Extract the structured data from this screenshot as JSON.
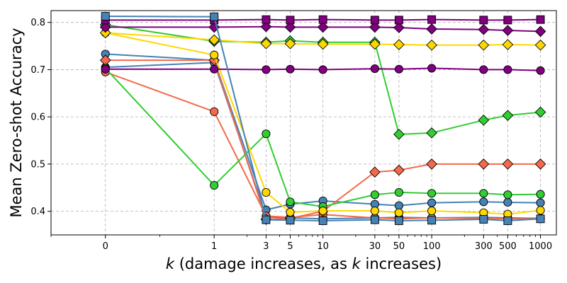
{
  "chart_data": {
    "type": "line",
    "title": "",
    "xlabel": "k (damage increases, as k increases)",
    "xlabel_parts": {
      "var": "k",
      "mid": " (damage increases, as ",
      "var2": "k",
      "end": " increases)"
    },
    "ylabel": "Mean Zero-shot Accuracy",
    "x_scale": "symlog",
    "xlim": [
      -0.5,
      1400
    ],
    "ylim": [
      0.35,
      0.825
    ],
    "grid": true,
    "x_ticks": [
      0,
      1,
      3,
      5,
      10,
      30,
      50,
      100,
      300,
      500,
      1000
    ],
    "x_tick_labels": [
      "0",
      "1",
      "3",
      "5",
      "10",
      "30",
      "50",
      "100",
      "300",
      "500",
      "1000"
    ],
    "y_ticks": [
      0.4,
      0.5,
      0.6,
      0.7,
      0.8
    ],
    "y_tick_labels": [
      "0.4",
      "0.5",
      "0.6",
      "0.7",
      "0.8"
    ],
    "series": [
      {
        "name": "steelblue-circle-1",
        "color": "#4682b4",
        "marker": "circle",
        "x": [
          0,
          1,
          3,
          5,
          10,
          30,
          50,
          100,
          300,
          500,
          1000
        ],
        "y": [
          0.733,
          0.72,
          0.403,
          0.415,
          0.422,
          0.415,
          0.412,
          0.418,
          0.42,
          0.419,
          0.418
        ]
      },
      {
        "name": "steelblue-circle-2",
        "color": "#4682b4",
        "marker": "circle",
        "x": [
          0,
          1,
          3,
          5,
          10,
          30,
          50,
          100,
          300,
          500,
          1000
        ],
        "y": [
          0.705,
          0.715,
          0.388,
          0.386,
          0.384,
          0.386,
          0.387,
          0.386,
          0.387,
          0.386,
          0.385
        ]
      },
      {
        "name": "tomato-circle",
        "color": "#f4694b",
        "marker": "circle",
        "x": [
          0,
          1,
          3,
          5,
          10,
          30,
          50,
          100,
          300,
          500,
          1000
        ],
        "y": [
          0.695,
          0.611,
          0.39,
          0.387,
          0.393,
          0.386,
          0.384,
          0.386,
          0.385,
          0.384,
          0.384
        ]
      },
      {
        "name": "tomato-diamond",
        "color": "#f4694b",
        "marker": "diamond",
        "x": [
          0,
          1,
          3,
          5,
          10,
          30,
          50,
          100,
          300,
          500,
          1000
        ],
        "y": [
          0.72,
          0.72,
          0.383,
          0.385,
          0.4,
          0.483,
          0.487,
          0.5,
          0.5,
          0.5,
          0.5
        ]
      },
      {
        "name": "green-circle",
        "color": "#32cd32",
        "marker": "circle",
        "x": [
          0,
          1,
          3,
          5,
          10,
          30,
          50,
          100,
          300,
          500,
          1000
        ],
        "y": [
          0.703,
          0.455,
          0.564,
          0.42,
          0.41,
          0.435,
          0.44,
          0.438,
          0.438,
          0.435,
          0.436
        ]
      },
      {
        "name": "green-diamond",
        "color": "#32cd32",
        "marker": "diamond",
        "x": [
          0,
          1,
          3,
          5,
          10,
          30,
          50,
          100,
          300,
          500,
          1000
        ],
        "y": [
          0.795,
          0.76,
          0.758,
          0.761,
          0.758,
          0.758,
          0.563,
          0.566,
          0.593,
          0.603,
          0.61
        ]
      },
      {
        "name": "gold-circle",
        "color": "#ffd700",
        "marker": "circle",
        "x": [
          0,
          1,
          3,
          5,
          10,
          30,
          50,
          100,
          300,
          500,
          1000
        ],
        "y": [
          0.778,
          0.731,
          0.44,
          0.398,
          0.401,
          0.401,
          0.397,
          0.401,
          0.397,
          0.394,
          0.402
        ]
      },
      {
        "name": "gold-diamond",
        "color": "#ffd700",
        "marker": "diamond",
        "x": [
          0,
          1,
          3,
          5,
          10,
          30,
          50,
          100,
          300,
          500,
          1000
        ],
        "y": [
          0.778,
          0.763,
          0.755,
          0.755,
          0.754,
          0.754,
          0.753,
          0.752,
          0.752,
          0.753,
          0.752
        ]
      },
      {
        "name": "purple-circle",
        "color": "#800080",
        "marker": "circle",
        "x": [
          0,
          1,
          3,
          5,
          10,
          30,
          50,
          100,
          300,
          500,
          1000
        ],
        "y": [
          0.701,
          0.701,
          0.7,
          0.701,
          0.7,
          0.702,
          0.701,
          0.703,
          0.7,
          0.7,
          0.698
        ]
      },
      {
        "name": "purple-diamond",
        "color": "#800080",
        "marker": "diamond",
        "x": [
          0,
          1,
          3,
          5,
          10,
          30,
          50,
          100,
          300,
          500,
          1000
        ],
        "y": [
          0.79,
          0.79,
          0.791,
          0.79,
          0.79,
          0.79,
          0.789,
          0.786,
          0.785,
          0.783,
          0.781
        ]
      },
      {
        "name": "purple-square",
        "color": "#800080",
        "marker": "square",
        "x": [
          0,
          1,
          3,
          5,
          10,
          30,
          50,
          100,
          300,
          500,
          1000
        ],
        "y": [
          0.805,
          0.805,
          0.806,
          0.805,
          0.806,
          0.805,
          0.805,
          0.806,
          0.805,
          0.805,
          0.806
        ]
      },
      {
        "name": "steelblue-square",
        "color": "#4682b4",
        "marker": "square",
        "x": [
          0,
          1,
          3,
          5,
          10,
          30,
          50,
          100,
          300,
          500,
          1000
        ],
        "y": [
          0.813,
          0.812,
          0.382,
          0.381,
          0.38,
          0.382,
          0.38,
          0.381,
          0.383,
          0.38,
          0.384
        ]
      }
    ]
  }
}
